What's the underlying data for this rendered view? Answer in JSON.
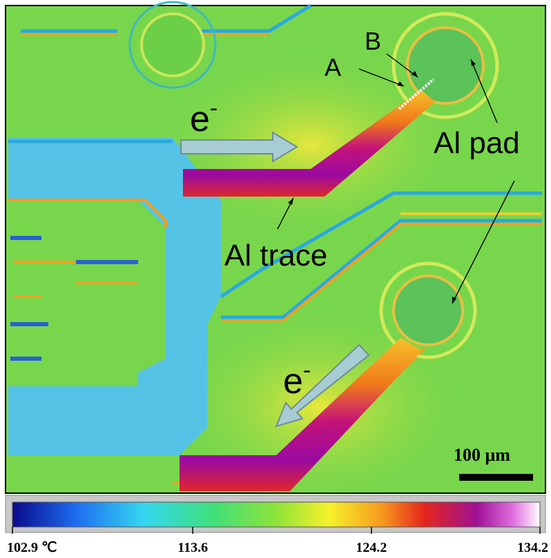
{
  "image": {
    "labels": {
      "a": "A",
      "b": "B",
      "al_pad": "Al pad",
      "al_trace": "Al trace"
    },
    "electron_arrows": [
      {
        "text": "e",
        "sup": "-"
      },
      {
        "text": "e",
        "sup": "-"
      }
    ],
    "scale_bar": "100 μm"
  },
  "colorbar": {
    "range": [
      102.9,
      134.2
    ],
    "ticks": [
      {
        "value": 102.9,
        "label": "102.9 ℃"
      },
      113.6,
      124.2,
      134.2
    ]
  }
}
